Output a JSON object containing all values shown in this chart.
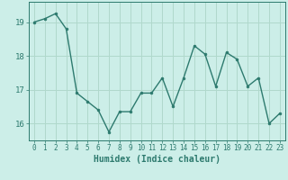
{
  "x": [
    0,
    1,
    2,
    3,
    4,
    5,
    6,
    7,
    8,
    9,
    10,
    11,
    12,
    13,
    14,
    15,
    16,
    17,
    18,
    19,
    20,
    21,
    22,
    23
  ],
  "y": [
    19.0,
    19.1,
    19.25,
    18.8,
    16.9,
    16.65,
    16.4,
    15.75,
    16.35,
    16.35,
    16.9,
    16.9,
    17.35,
    16.5,
    17.35,
    18.3,
    18.05,
    17.1,
    18.1,
    17.9,
    17.1,
    17.35,
    16.0,
    16.3
  ],
  "line_color": "#2d7a6e",
  "marker_color": "#2d7a6e",
  "bg_color": "#cceee8",
  "grid_color": "#b0d8cc",
  "xlabel": "Humidex (Indice chaleur)",
  "xlabel_fontsize": 7,
  "tick_fontsize": 5.5,
  "ytick_fontsize": 6.5,
  "tick_color": "#2d7a6e",
  "ylim": [
    15.5,
    19.6
  ],
  "xlim": [
    -0.5,
    23.5
  ],
  "yticks": [
    16,
    17,
    18,
    19
  ],
  "xticks": [
    0,
    1,
    2,
    3,
    4,
    5,
    6,
    7,
    8,
    9,
    10,
    11,
    12,
    13,
    14,
    15,
    16,
    17,
    18,
    19,
    20,
    21,
    22,
    23
  ]
}
